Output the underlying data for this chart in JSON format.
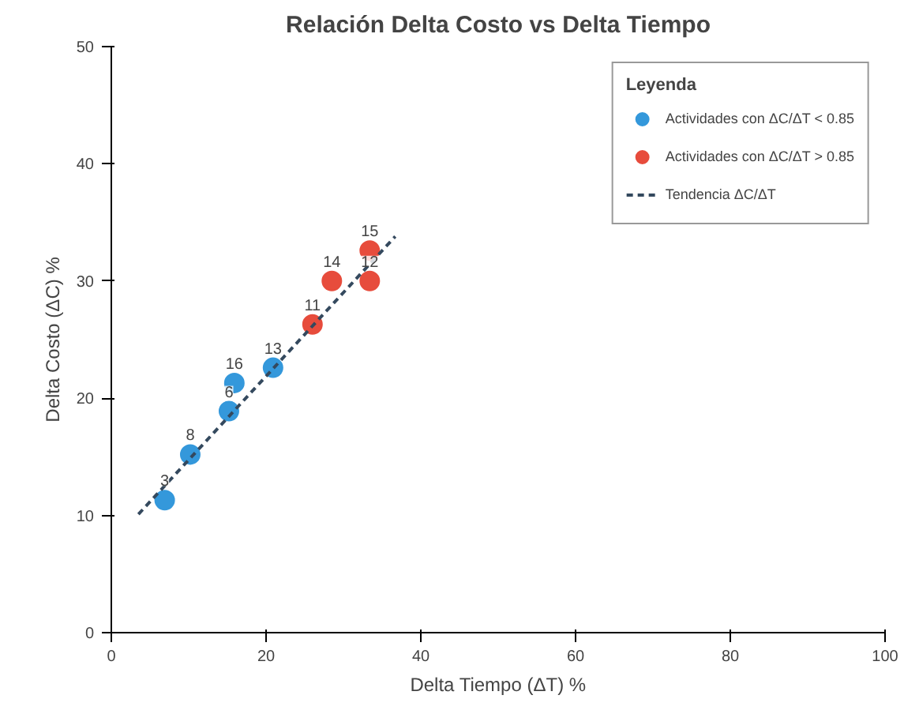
{
  "chart_data": {
    "type": "scatter",
    "title": "Relación Delta Costo vs Delta Tiempo",
    "xlabel": "Delta Tiempo (ΔT) %",
    "ylabel": "Delta Costo (ΔC) %",
    "xlim": [
      0,
      100
    ],
    "xticks": [
      0,
      20,
      40,
      60,
      80,
      100
    ],
    "ylim": [
      0,
      50
    ],
    "yticks": [
      0,
      10,
      20,
      30,
      40,
      50
    ],
    "grid": false,
    "legend": "top right",
    "legend_title": "Leyenda",
    "marker": "circle",
    "series": [
      {
        "name": "Actividades con ΔC/ΔT < 0.85",
        "color": "#3498db",
        "x": [
          6.9,
          10.2,
          15.2,
          15.9,
          20.9
        ],
        "values": [
          11.3,
          15.2,
          18.9,
          21.3,
          22.6
        ]
      },
      {
        "name": "Actividades con ΔC/ΔT > 0.85",
        "color": "#e74c3c",
        "x": [
          26.0,
          28.5,
          33.4,
          33.4
        ],
        "values": [
          26.3,
          30.0,
          32.6,
          30.0
        ]
      },
      {
        "name": "Tendencia ΔC/ΔT",
        "type": "line",
        "line_style": "dashed",
        "marker": "none",
        "color": "#34495e",
        "x": [
          3.5,
          36.7
        ],
        "values": [
          10.1,
          33.8
        ]
      }
    ],
    "annotations": [
      {
        "text": "3",
        "x": 6.9,
        "y": 11.3
      },
      {
        "text": "8",
        "x": 10.2,
        "y": 15.2
      },
      {
        "text": "6",
        "x": 15.2,
        "y": 18.9
      },
      {
        "text": "16",
        "x": 15.9,
        "y": 21.3
      },
      {
        "text": "13",
        "x": 20.9,
        "y": 22.6
      },
      {
        "text": "11",
        "x": 26.0,
        "y": 26.3
      },
      {
        "text": "14",
        "x": 28.5,
        "y": 30.0
      },
      {
        "text": "15",
        "x": 33.4,
        "y": 32.6
      },
      {
        "text": "12",
        "x": 33.4,
        "y": 30.0
      }
    ]
  }
}
